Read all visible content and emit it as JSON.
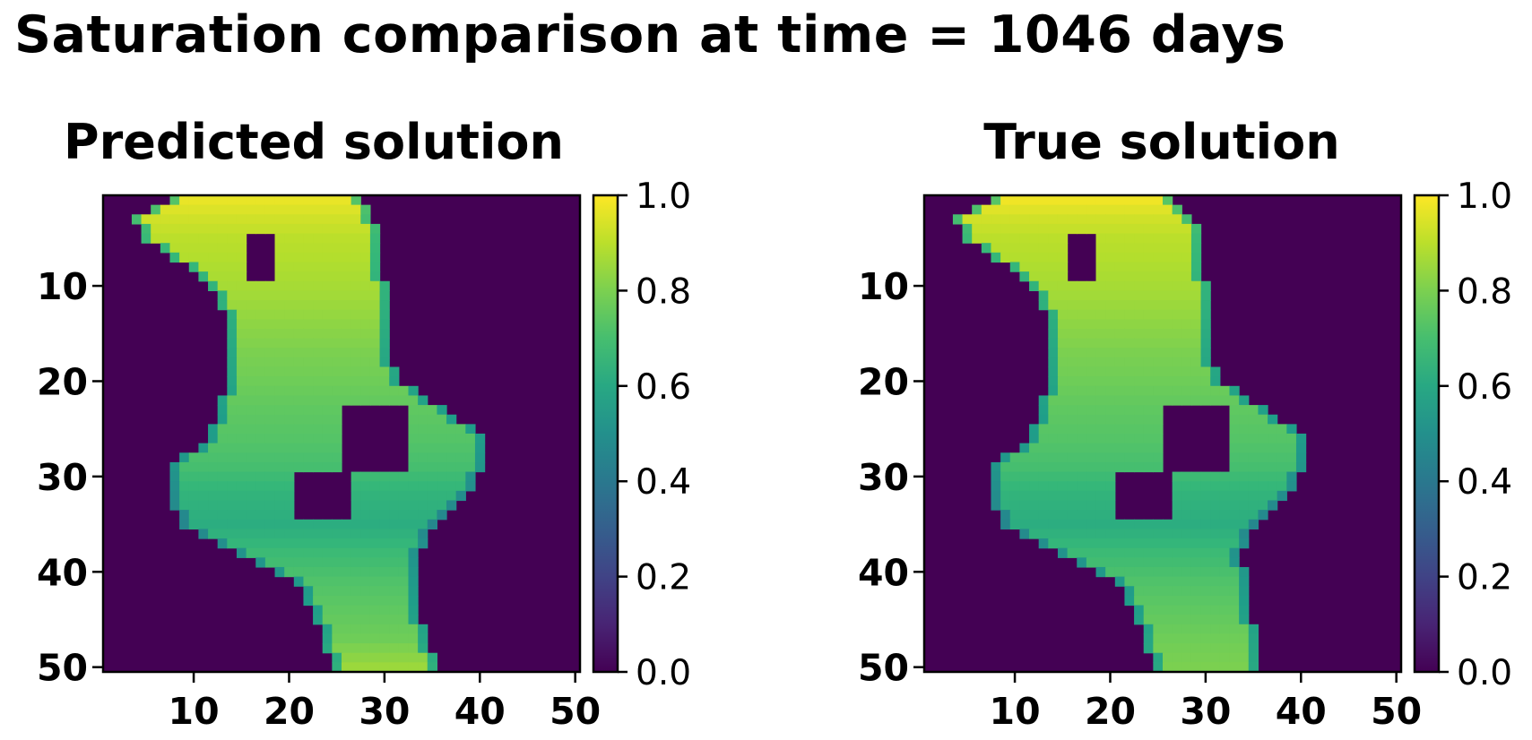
{
  "title": "Saturation comparison at time = 1046 days",
  "panels": [
    {
      "title": "Predicted solution"
    },
    {
      "title": "True solution"
    }
  ],
  "x_ticks": [
    "10",
    "20",
    "30",
    "40",
    "50"
  ],
  "y_ticks": [
    "10",
    "20",
    "30",
    "40",
    "50"
  ],
  "colorbar_ticks": [
    "0.0",
    "0.2",
    "0.4",
    "0.6",
    "0.8",
    "1.0"
  ],
  "colors": {
    "colormap": "viridis",
    "background_low": "#440154",
    "high": "#fde725"
  },
  "chart_data": [
    {
      "type": "heatmap",
      "title": "Predicted solution",
      "xlabel": "",
      "ylabel": "",
      "grid_size": [
        50,
        50
      ],
      "xlim": [
        0.5,
        50.5
      ],
      "ylim": [
        50.5,
        0.5
      ],
      "x_ticks": [
        10,
        20,
        30,
        40,
        50
      ],
      "y_ticks": [
        10,
        20,
        30,
        40,
        50
      ],
      "colorbar": {
        "range": [
          0.0,
          1.0
        ],
        "ticks": [
          0.0,
          0.2,
          0.4,
          0.6,
          0.8,
          1.0
        ],
        "colormap": "viridis"
      },
      "plume": {
        "rows": [
          {
            "y": 1,
            "x_min": 8,
            "x_max": 27,
            "value": 0.97
          },
          {
            "y": 3,
            "x_min": 4,
            "x_max": 28,
            "value": 0.93
          },
          {
            "y": 5,
            "x_min": 5,
            "x_max": 29,
            "value": 0.9
          },
          {
            "y": 8,
            "x_min": 10,
            "x_max": 29,
            "value": 0.88
          },
          {
            "y": 11,
            "x_min": 13,
            "x_max": 30,
            "value": 0.86
          },
          {
            "y": 14,
            "x_min": 14,
            "x_max": 30,
            "value": 0.83
          },
          {
            "y": 17,
            "x_min": 14,
            "x_max": 30,
            "value": 0.8
          },
          {
            "y": 20,
            "x_min": 14,
            "x_max": 31,
            "value": 0.78
          },
          {
            "y": 23,
            "x_min": 13,
            "x_max": 36,
            "value": 0.75
          },
          {
            "y": 26,
            "x_min": 12,
            "x_max": 40,
            "value": 0.73
          },
          {
            "y": 29,
            "x_min": 8,
            "x_max": 40,
            "value": 0.7
          },
          {
            "y": 32,
            "x_min": 8,
            "x_max": 38,
            "value": 0.65
          },
          {
            "y": 35,
            "x_min": 9,
            "x_max": 35,
            "value": 0.62
          },
          {
            "y": 38,
            "x_min": 15,
            "x_max": 33,
            "value": 0.68
          },
          {
            "y": 41,
            "x_min": 21,
            "x_max": 33,
            "value": 0.72
          },
          {
            "y": 44,
            "x_min": 23,
            "x_max": 33,
            "value": 0.75
          },
          {
            "y": 47,
            "x_min": 24,
            "x_max": 34,
            "value": 0.78
          },
          {
            "y": 50,
            "x_min": 25,
            "x_max": 35,
            "value": 0.85
          }
        ],
        "holes": [
          {
            "x_min": 16,
            "x_max": 18,
            "y_min": 5,
            "y_max": 9
          },
          {
            "x_min": 26,
            "x_max": 32,
            "y_min": 23,
            "y_max": 29
          },
          {
            "x_min": 21,
            "x_max": 26,
            "y_min": 30,
            "y_max": 34
          }
        ],
        "outside_value": 0.0
      }
    },
    {
      "type": "heatmap",
      "title": "True solution",
      "xlabel": "",
      "ylabel": "",
      "grid_size": [
        50,
        50
      ],
      "xlim": [
        0.5,
        50.5
      ],
      "ylim": [
        50.5,
        0.5
      ],
      "x_ticks": [
        10,
        20,
        30,
        40,
        50
      ],
      "y_ticks": [
        10,
        20,
        30,
        40,
        50
      ],
      "colorbar": {
        "range": [
          0.0,
          1.0
        ],
        "ticks": [
          0.0,
          0.2,
          0.4,
          0.6,
          0.8,
          1.0
        ],
        "colormap": "viridis"
      },
      "plume": {
        "rows": [
          {
            "y": 1,
            "x_min": 8,
            "x_max": 26,
            "value": 0.98
          },
          {
            "y": 3,
            "x_min": 4,
            "x_max": 28,
            "value": 0.93
          },
          {
            "y": 5,
            "x_min": 5,
            "x_max": 29,
            "value": 0.9
          },
          {
            "y": 8,
            "x_min": 10,
            "x_max": 29,
            "value": 0.88
          },
          {
            "y": 11,
            "x_min": 13,
            "x_max": 30,
            "value": 0.86
          },
          {
            "y": 14,
            "x_min": 14,
            "x_max": 30,
            "value": 0.83
          },
          {
            "y": 17,
            "x_min": 14,
            "x_max": 30,
            "value": 0.8
          },
          {
            "y": 20,
            "x_min": 14,
            "x_max": 31,
            "value": 0.78
          },
          {
            "y": 23,
            "x_min": 13,
            "x_max": 36,
            "value": 0.75
          },
          {
            "y": 26,
            "x_min": 12,
            "x_max": 40,
            "value": 0.73
          },
          {
            "y": 29,
            "x_min": 8,
            "x_max": 40,
            "value": 0.7
          },
          {
            "y": 32,
            "x_min": 8,
            "x_max": 38,
            "value": 0.65
          },
          {
            "y": 35,
            "x_min": 9,
            "x_max": 35,
            "value": 0.62
          },
          {
            "y": 38,
            "x_min": 15,
            "x_max": 33,
            "value": 0.68
          },
          {
            "y": 41,
            "x_min": 21,
            "x_max": 34,
            "value": 0.72
          },
          {
            "y": 44,
            "x_min": 23,
            "x_max": 34,
            "value": 0.75
          },
          {
            "y": 47,
            "x_min": 24,
            "x_max": 35,
            "value": 0.78
          },
          {
            "y": 50,
            "x_min": 25,
            "x_max": 35,
            "value": 0.8
          }
        ],
        "holes": [
          {
            "x_min": 16,
            "x_max": 18,
            "y_min": 5,
            "y_max": 9
          },
          {
            "x_min": 26,
            "x_max": 32,
            "y_min": 23,
            "y_max": 29
          },
          {
            "x_min": 21,
            "x_max": 26,
            "y_min": 30,
            "y_max": 34
          }
        ],
        "outside_value": 0.0
      }
    }
  ]
}
